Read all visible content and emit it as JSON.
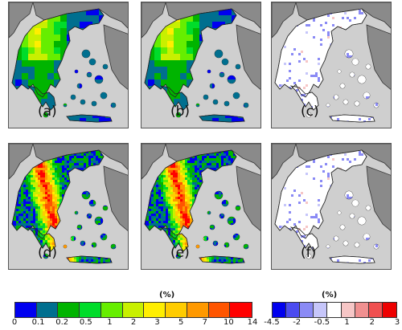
{
  "panels": [
    {
      "label": "(a)",
      "fill": "low-res"
    },
    {
      "label": "(b)",
      "fill": "low-res"
    },
    {
      "label": "(c)",
      "fill": "diff"
    },
    {
      "label": "(d)",
      "fill": "high-res"
    },
    {
      "label": "(e)",
      "fill": "high-res"
    },
    {
      "label": "(f)",
      "fill": "diff"
    }
  ],
  "colorbar_left": {
    "title": "(%)",
    "ticks": [
      "0",
      "0.1",
      "0.2",
      "0.5",
      "1",
      "2",
      "3",
      "5",
      "7",
      "10",
      "14"
    ],
    "colors": [
      "#0000f0",
      "#006f8f",
      "#00b400",
      "#00dc2a",
      "#66ee00",
      "#c8f000",
      "#ffee00",
      "#ffcc00",
      "#ff9900",
      "#ff5500",
      "#ff0000"
    ]
  },
  "colorbar_right": {
    "title": "(%)",
    "ticks": [
      "-4.5",
      "-2",
      "-0.5",
      "1",
      "2",
      "3"
    ],
    "colors": [
      "#0000ee",
      "#4b4bf0",
      "#8a8af5",
      "#c6c6fa",
      "#ffffff",
      "#f6c6c6",
      "#f09090",
      "#f05050",
      "#ee0000"
    ]
  },
  "colors": {
    "sea": "#cfcfcf",
    "neighbour_land": "#8a8a8a",
    "land_white": "#ffffff"
  }
}
